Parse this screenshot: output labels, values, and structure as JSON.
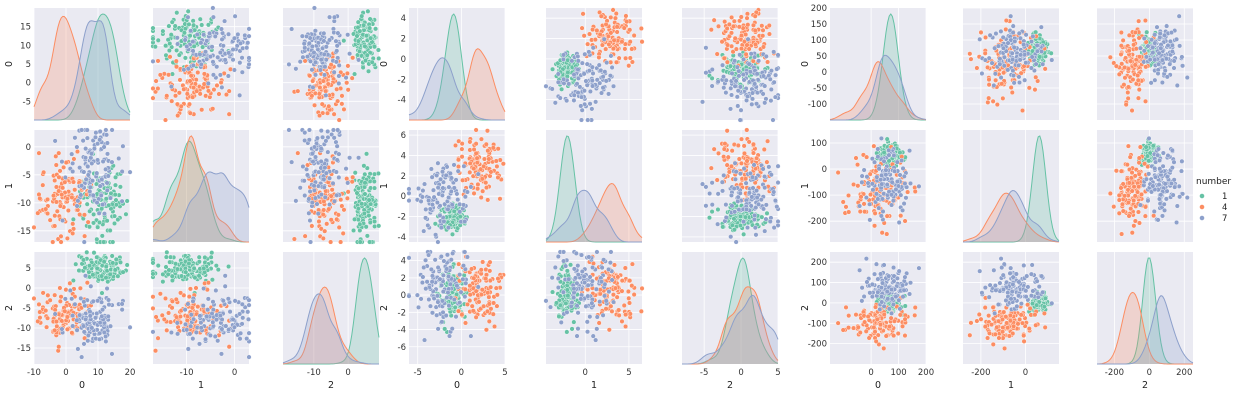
{
  "colors": {
    "1": "#66c2a5",
    "4": "#fc8d62",
    "7": "#8da0cb",
    "panel_bg": "#eaeaf2",
    "grid": "#ffffff"
  },
  "legend": {
    "title": "number",
    "entries": [
      "1",
      "4",
      "7"
    ]
  },
  "chart_data": [
    {
      "type": "scatter",
      "layout": "pairplot",
      "variables": [
        "0",
        "1",
        "2"
      ],
      "hue": "number",
      "diagonal": "kde",
      "ranges": {
        "0": [
          -10,
          20
        ],
        "1": [
          -17,
          3
        ],
        "2": [
          -19,
          9
        ]
      },
      "ticks": {
        "0": [
          -10,
          0,
          10,
          20
        ],
        "1": [
          -20,
          -10,
          0
        ],
        "2": [
          -20,
          -10,
          0,
          10
        ]
      },
      "ytick_labels": {
        "0": [
          -5,
          0,
          5,
          10,
          15
        ],
        "1": [
          -15,
          -10,
          -5,
          0
        ],
        "2": [
          -15,
          -10,
          -5,
          0,
          5
        ]
      },
      "groups": {
        "1": {
          "mean": [
            11,
            -10,
            5
          ],
          "sd": [
            4,
            3.5,
            1.8
          ]
        },
        "4": {
          "mean": [
            0,
            -9,
            -7
          ],
          "sd": [
            4,
            3.5,
            3
          ]
        },
        "7": {
          "mean": [
            8,
            -3,
            -8
          ],
          "sd": [
            4,
            4,
            3.5
          ]
        }
      }
    },
    {
      "type": "scatter",
      "layout": "pairplot",
      "variables": [
        "0",
        "1",
        "2"
      ],
      "hue": "number",
      "diagonal": "kde",
      "ranges": {
        "0": [
          -6,
          5
        ],
        "1": [
          -4.5,
          6.5
        ],
        "2": [
          -8,
          5
        ]
      },
      "ticks": {
        "0": [
          -5,
          0,
          5
        ],
        "1": [
          0,
          5
        ],
        "2": [
          -10,
          -5,
          0,
          5
        ]
      },
      "ytick_labels": {
        "0": [
          -4,
          -2,
          0,
          2,
          4
        ],
        "1": [
          -4,
          -2,
          0,
          2,
          4,
          6
        ],
        "2": [
          -6,
          -4,
          -2,
          0,
          2,
          4
        ]
      },
      "groups": {
        "1": {
          "mean": [
            -1,
            -2,
            0
          ],
          "sd": [
            0.8,
            0.6,
            1.5
          ]
        },
        "4": {
          "mean": [
            2,
            3,
            0
          ],
          "sd": [
            1.2,
            1.5,
            2
          ]
        },
        "7": {
          "mean": [
            -2,
            0,
            1
          ],
          "sd": [
            1.5,
            1.8,
            2.2
          ]
        }
      }
    },
    {
      "type": "scatter",
      "layout": "pairplot",
      "variables": [
        "0",
        "1",
        "2"
      ],
      "hue": "number",
      "diagonal": "kde",
      "ranges": {
        "0": [
          -150,
          200
        ],
        "1": [
          -280,
          150
        ],
        "2": [
          -300,
          250
        ]
      },
      "ticks": {
        "0": [
          0,
          100,
          200
        ],
        "1": [
          -200,
          0
        ],
        "2": [
          -200,
          0,
          200
        ]
      },
      "ytick_labels": {
        "0": [
          -100,
          -50,
          0,
          50,
          100,
          150,
          200
        ],
        "1": [
          -200,
          -100,
          0,
          100
        ],
        "2": [
          -200,
          -100,
          0,
          100,
          200
        ]
      },
      "groups": {
        "1": {
          "mean": [
            70,
            60,
            0
          ],
          "sd": [
            20,
            20,
            20
          ]
        },
        "4": {
          "mean": [
            30,
            -90,
            -100
          ],
          "sd": [
            50,
            60,
            50
          ]
        },
        "7": {
          "mean": [
            60,
            -50,
            60
          ],
          "sd": [
            40,
            60,
            60
          ]
        }
      }
    }
  ]
}
